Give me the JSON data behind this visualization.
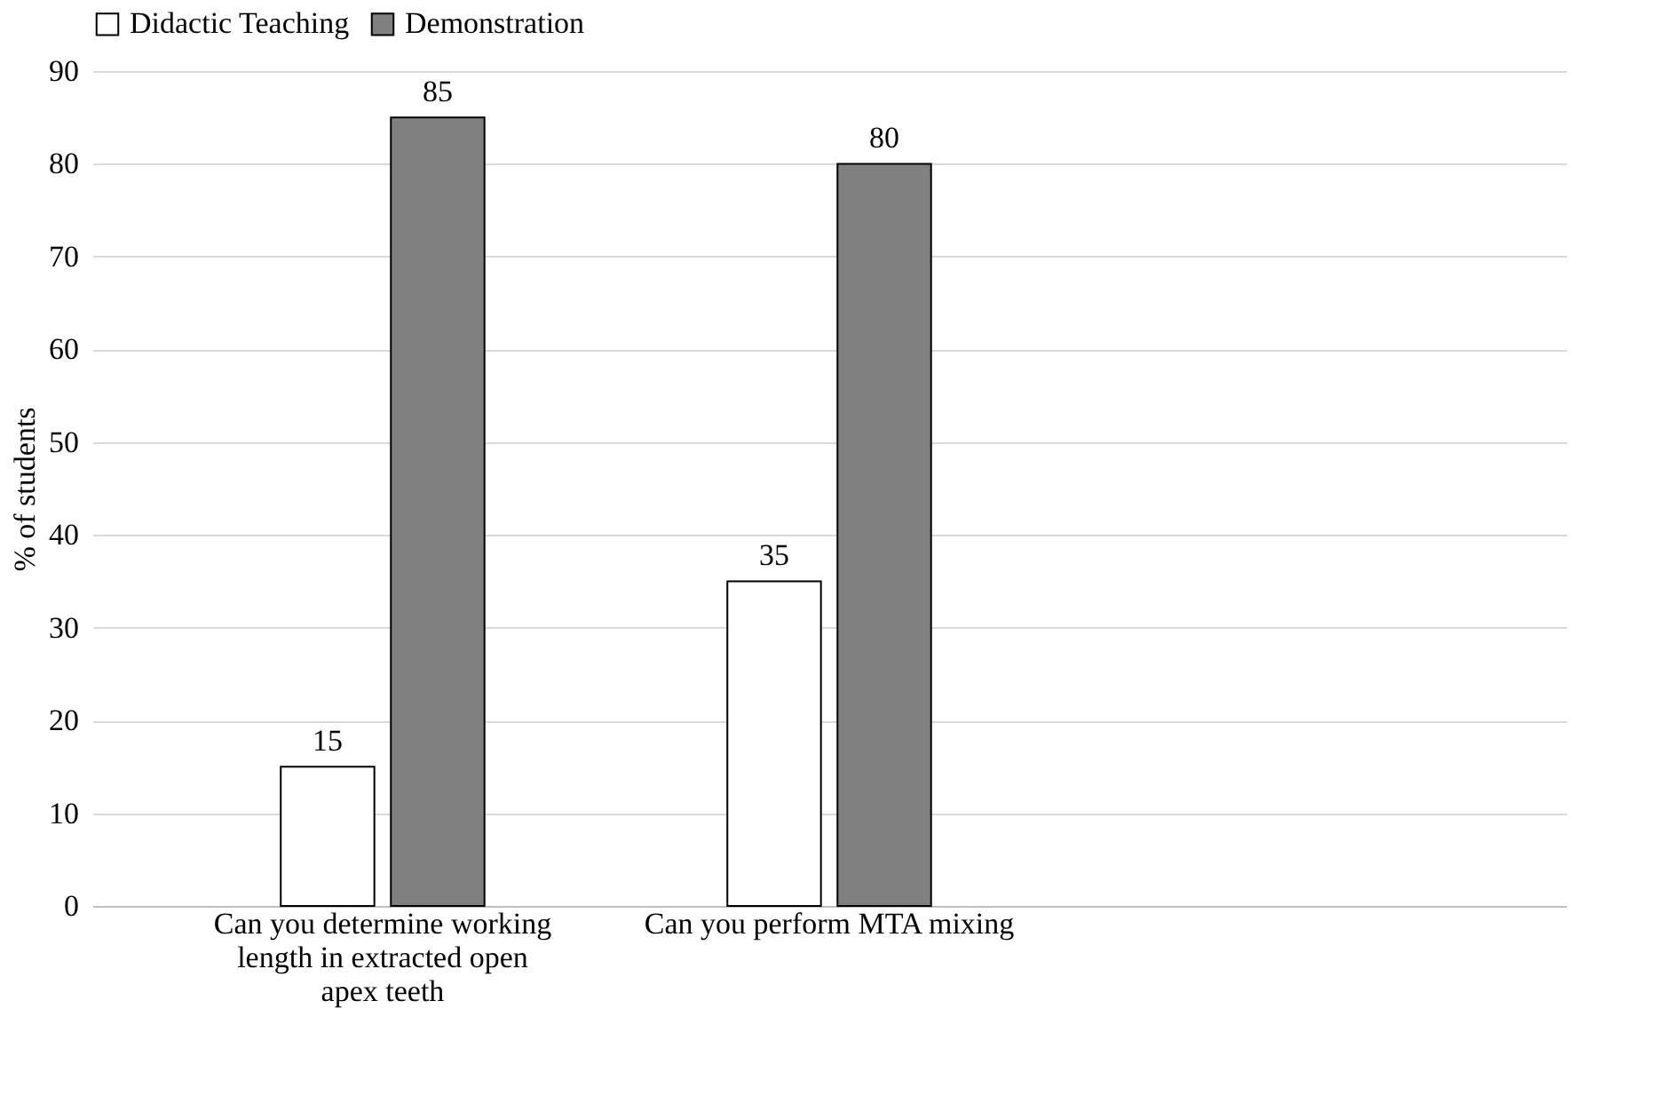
{
  "chart_data": {
    "type": "bar",
    "ylabel": "% of students",
    "categories": [
      "Can you determine working length in extracted open apex teeth",
      "Can you perform MTA mixing",
      null
    ],
    "series": [
      {
        "name": "Didactic Teaching",
        "color": "#ffffff",
        "values": [
          15,
          35,
          null
        ]
      },
      {
        "name": "Demonstration",
        "color": "#808080",
        "values": [
          85,
          80,
          null
        ]
      }
    ],
    "ylim": [
      0,
      90
    ],
    "yticks": [
      0,
      10,
      20,
      30,
      40,
      50,
      60,
      70,
      80,
      90
    ],
    "grid": "y",
    "legend": "top",
    "data_labels": true
  }
}
